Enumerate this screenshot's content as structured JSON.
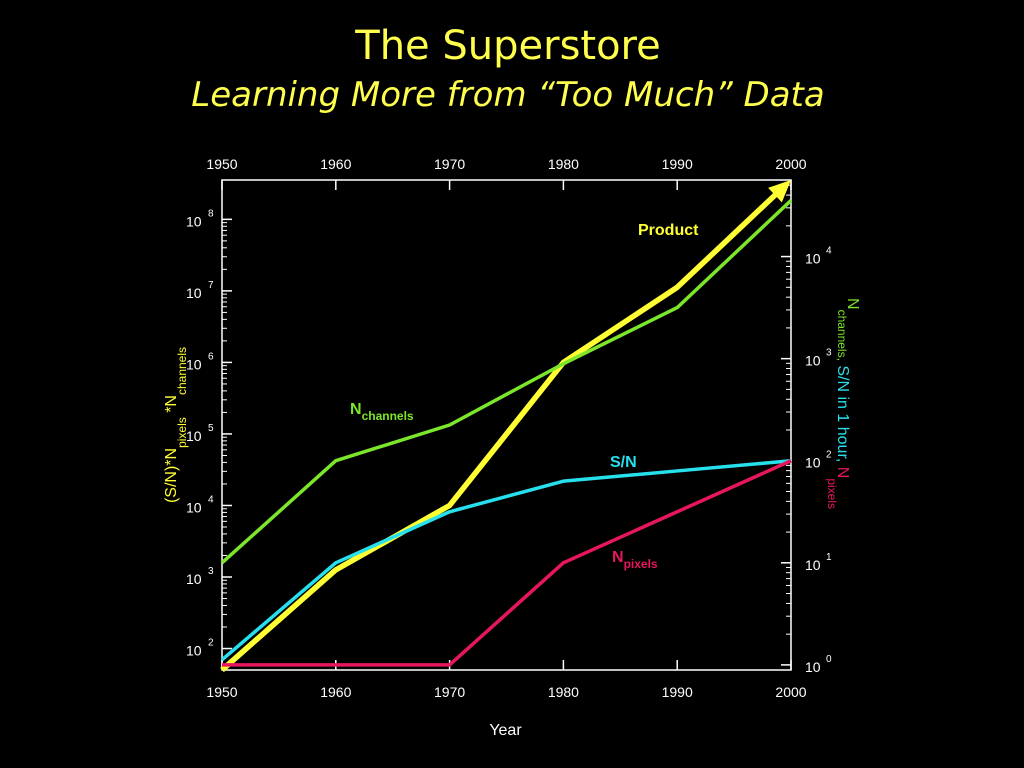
{
  "page": {
    "title": "The Superstore",
    "subtitle": "Learning More from “Too Much” Data"
  },
  "colors": {
    "background": "#000000",
    "title": "#ffff4d",
    "axis": "#ffffff",
    "product": "#ffff33",
    "channels": "#7ce62a",
    "sn": "#27e0ee",
    "pixels": "#e8175d"
  },
  "chart_data": {
    "type": "line",
    "xlabel": "Year",
    "x_ticks": [
      1950,
      1960,
      1970,
      1980,
      1990,
      2000
    ],
    "xlim": [
      1950,
      2000
    ],
    "left_axis": {
      "label_parts": [
        "(S/N)*N",
        "pixels",
        " *N",
        "channels"
      ],
      "scale": "log",
      "exp_range": [
        1.7,
        8.55
      ],
      "ticks": [
        {
          "base": "10",
          "exp": "2",
          "value": 2
        },
        {
          "base": "10",
          "exp": "3",
          "value": 3
        },
        {
          "base": "10",
          "exp": "4",
          "value": 4
        },
        {
          "base": "10",
          "exp": "5",
          "value": 5
        },
        {
          "base": "10",
          "exp": "6",
          "value": 6
        },
        {
          "base": "10",
          "exp": "7",
          "value": 7
        },
        {
          "base": "10",
          "exp": "8",
          "value": 8
        }
      ]
    },
    "right_axis": {
      "scale": "log",
      "exp_range": [
        -0.05,
        4.75
      ],
      "label_parts": [
        {
          "text": "N",
          "sub": "channels,",
          "color": "channels"
        },
        {
          "text": " S/N in 1 hour,",
          "sub": "",
          "color": "sn"
        },
        {
          "text": "  N",
          "sub": "pixels",
          "color": "pixels"
        }
      ],
      "ticks": [
        {
          "base": "10",
          "exp": "0",
          "value": 0
        },
        {
          "base": "10",
          "exp": "1",
          "value": 1
        },
        {
          "base": "10",
          "exp": "2",
          "value": 2
        },
        {
          "base": "10",
          "exp": "3",
          "value": 3
        },
        {
          "base": "10",
          "exp": "4",
          "value": 4
        }
      ]
    },
    "series": [
      {
        "name": "Product",
        "axis": "left",
        "color": "product",
        "arrow": true,
        "x": [
          1950,
          1960,
          1970,
          1980,
          1990,
          2000
        ],
        "log10_values": [
          1.7,
          3.1,
          4.0,
          6.0,
          7.05,
          8.55
        ]
      },
      {
        "name": "N",
        "sub": "channels",
        "axis": "right",
        "color": "channels",
        "x": [
          1950,
          1960,
          1970,
          1980,
          1990,
          2000
        ],
        "log10_values": [
          1.0,
          2.0,
          2.35,
          2.95,
          3.5,
          4.55
        ]
      },
      {
        "name": "S/N",
        "axis": "right",
        "color": "sn",
        "x": [
          1950,
          1960,
          1970,
          1980,
          1990,
          2000
        ],
        "log10_values": [
          0.05,
          1.0,
          1.5,
          1.8,
          1.9,
          2.0
        ]
      },
      {
        "name": "N",
        "sub": "pixels",
        "axis": "right",
        "color": "pixels",
        "x": [
          1950,
          1960,
          1970,
          1980,
          1990,
          2000
        ],
        "log10_values": [
          0.0,
          0.0,
          0.0,
          1.0,
          1.5,
          2.0
        ]
      }
    ]
  }
}
